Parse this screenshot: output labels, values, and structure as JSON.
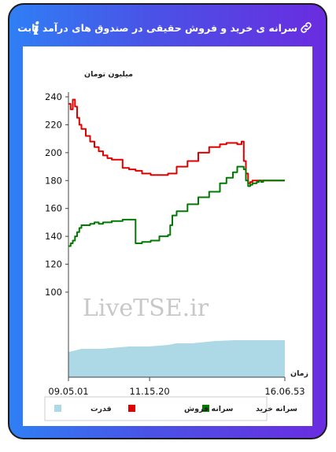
{
  "header": {
    "title": "سرانه ی خرید و فروش حقیقی در صندوق های درآمد ثابت",
    "link_icon": "link-icon",
    "info_icon": "info-icon",
    "info_glyph": "i"
  },
  "watermark": "LiveTSE.ir",
  "chart_data": {
    "type": "line",
    "ylabel": "میلیون تومان",
    "xlabel": "زمان",
    "ylim": [
      0,
      245
    ],
    "yticks": [
      100,
      120,
      140,
      160,
      180,
      200,
      220,
      240
    ],
    "xticks": [
      "09.05.01",
      "11.15.20",
      "16.06.53"
    ],
    "grid": false,
    "legend_position": "bottom",
    "series": [
      {
        "name": "سرانه فروش",
        "color": "#e00000",
        "x": [
          0,
          1,
          2,
          3,
          4,
          5,
          6,
          8,
          10,
          12,
          14,
          16,
          18,
          20,
          22,
          25,
          28,
          31,
          34,
          38,
          42,
          46,
          50,
          55,
          60,
          65,
          70,
          73,
          76,
          78,
          80,
          81,
          82,
          83,
          84,
          85,
          87,
          88,
          89,
          90,
          91,
          100
        ],
        "values": [
          235,
          231,
          238,
          233,
          225,
          220,
          217,
          212,
          208,
          204,
          201,
          198,
          196,
          195,
          195,
          189,
          188,
          187,
          185,
          184,
          184,
          185,
          190,
          194,
          200,
          204,
          206,
          207,
          207,
          206,
          208,
          194,
          185,
          178,
          179,
          180,
          180,
          180,
          180,
          180,
          180,
          180
        ]
      },
      {
        "name": "سرانه خرید",
        "color": "#007a00",
        "x": [
          0,
          1,
          2,
          3,
          4,
          5,
          6,
          8,
          10,
          12,
          14,
          16,
          18,
          20,
          22,
          25,
          28,
          30,
          31,
          34,
          38,
          42,
          46,
          47,
          48,
          50,
          55,
          60,
          65,
          70,
          73,
          76,
          78,
          80,
          81,
          82,
          83,
          84,
          85,
          87,
          88,
          89,
          90,
          91,
          100
        ],
        "values": [
          133,
          135,
          137,
          140,
          143,
          146,
          148,
          148,
          149,
          150,
          149,
          150,
          150,
          151,
          151,
          152,
          152,
          152,
          135,
          136,
          137,
          140,
          141,
          148,
          155,
          158,
          163,
          168,
          172,
          178,
          182,
          186,
          190,
          190,
          188,
          180,
          176,
          177,
          178,
          179,
          180,
          179,
          180,
          180,
          180
        ]
      },
      {
        "name": "قدرت",
        "color": "#add8e6"
      }
    ]
  }
}
